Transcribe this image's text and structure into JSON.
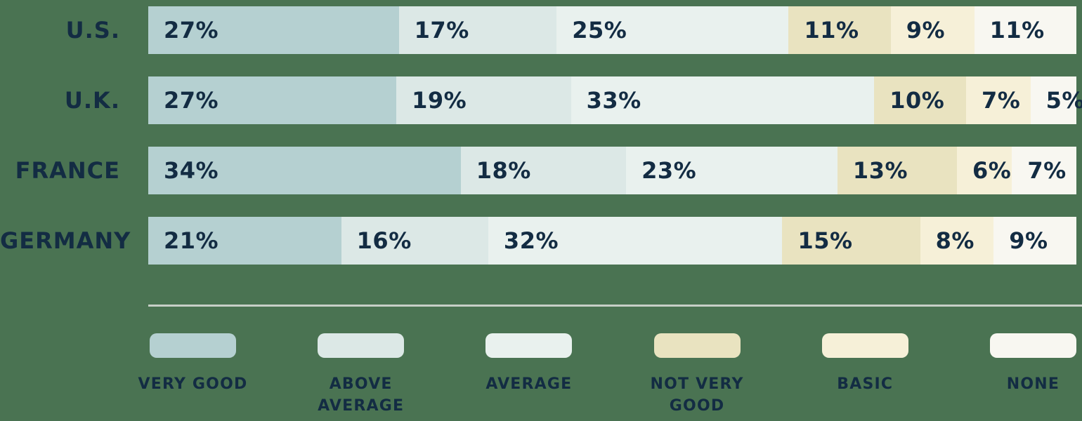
{
  "page": {
    "background_color": "#4a7352",
    "text_color": "#132c43",
    "divider_color": "#c7cfc7"
  },
  "chart_data": {
    "type": "bar",
    "variant": "horizontal-stacked",
    "unit": "%",
    "value_suffix": "%",
    "grid": false,
    "legend_position": "bottom",
    "categories": [
      "U.S.",
      "U.K.",
      "FRANCE",
      "GERMANY"
    ],
    "series": [
      {
        "name": "VERY GOOD",
        "legend_lines": [
          "VERY GOOD"
        ],
        "color": "#b5d0d1",
        "values": [
          27,
          27,
          34,
          21
        ]
      },
      {
        "name": "ABOVE AVERAGE",
        "legend_lines": [
          "ABOVE",
          "AVERAGE"
        ],
        "color": "#dce8e6",
        "values": [
          17,
          19,
          18,
          16
        ]
      },
      {
        "name": "AVERAGE",
        "legend_lines": [
          "AVERAGE"
        ],
        "color": "#e9f1ee",
        "values": [
          25,
          33,
          23,
          32
        ]
      },
      {
        "name": "NOT VERY GOOD",
        "legend_lines": [
          "NOT VERY",
          "GOOD"
        ],
        "color": "#e9e3c0",
        "values": [
          11,
          10,
          13,
          15
        ]
      },
      {
        "name": "BASIC",
        "legend_lines": [
          "BASIC"
        ],
        "color": "#f6f0d8",
        "values": [
          9,
          7,
          6,
          8
        ]
      },
      {
        "name": "NONE",
        "legend_lines": [
          "NONE"
        ],
        "color": "#f8f7f1",
        "values": [
          11,
          5,
          7,
          9
        ]
      }
    ]
  }
}
